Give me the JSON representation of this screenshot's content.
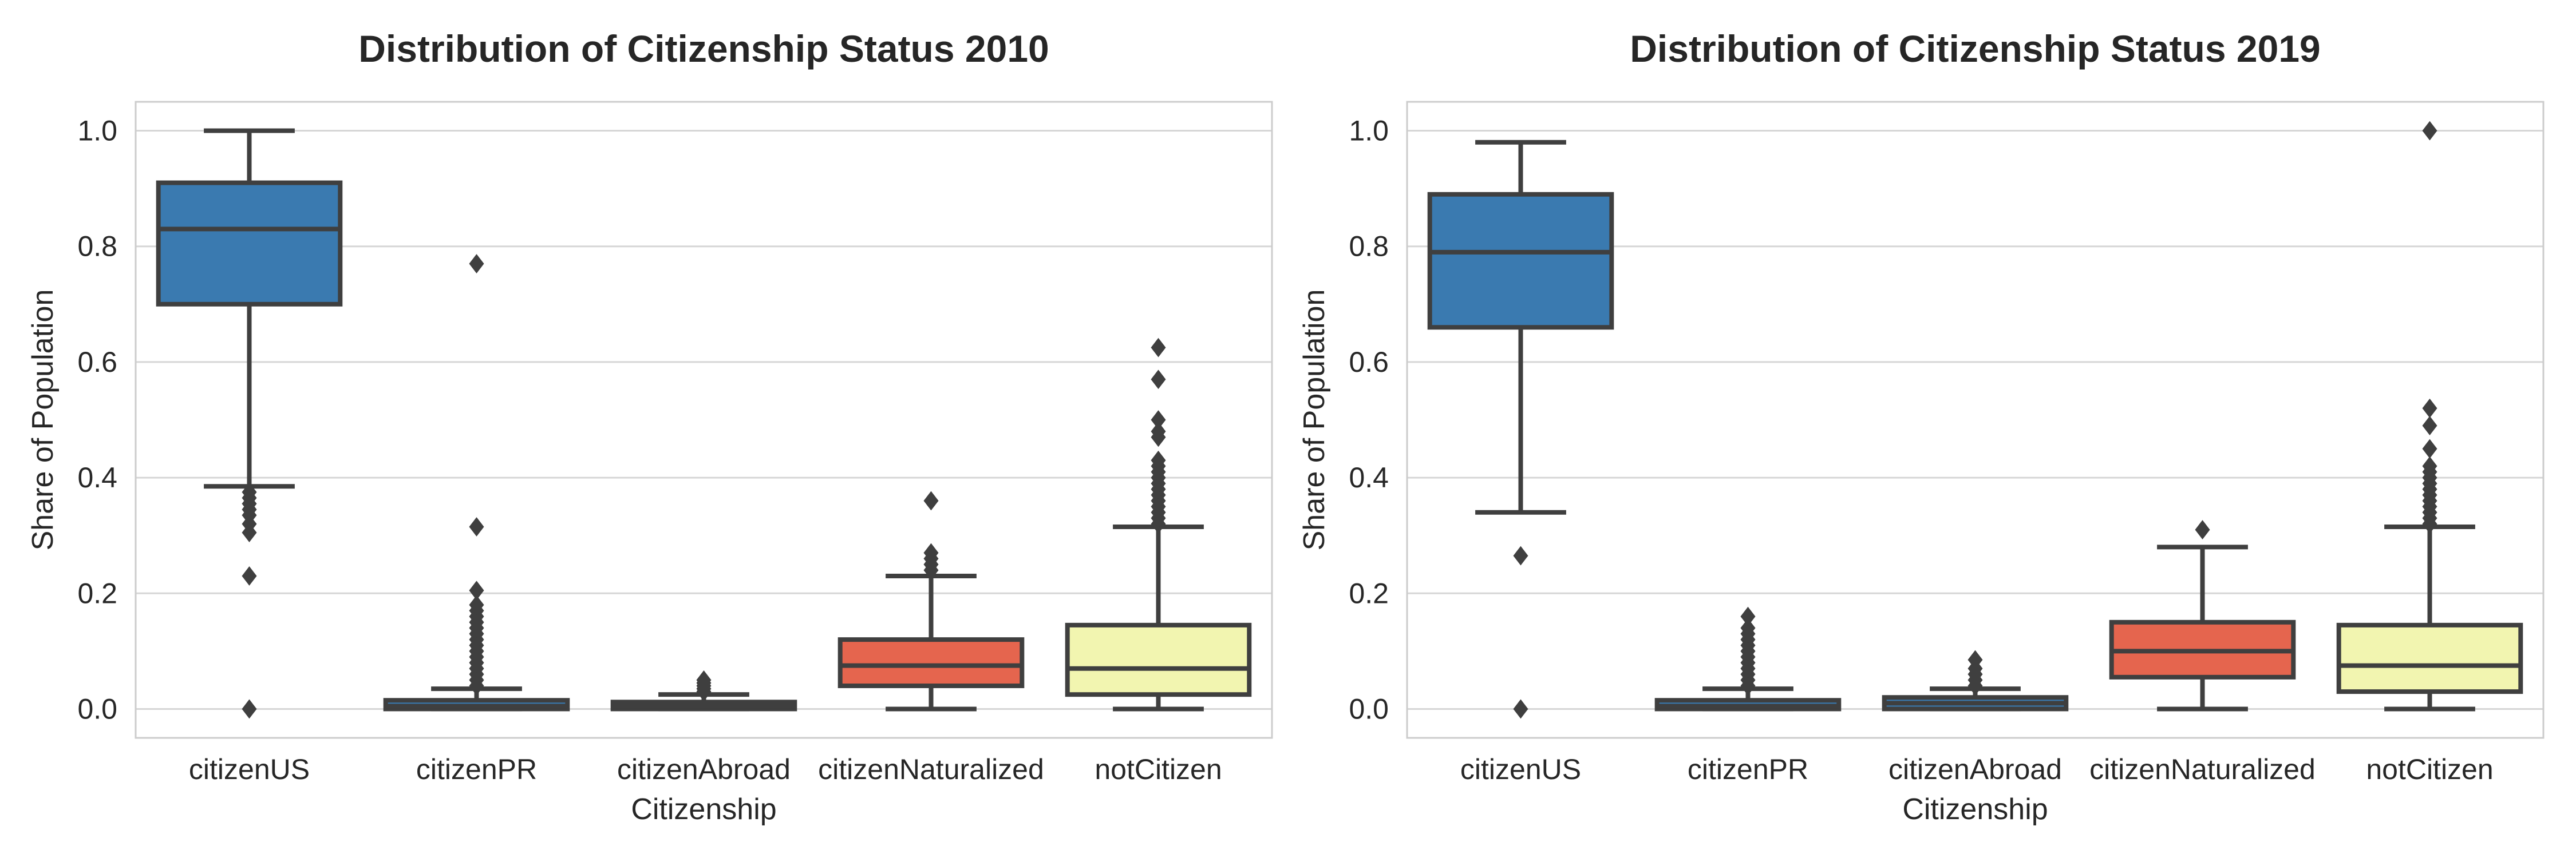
{
  "chart_data": [
    {
      "type": "box",
      "title": "Distribution of Citizenship Status 2010",
      "xlabel": "Citizenship",
      "ylabel": "Share of Population",
      "ylim": [
        -0.05,
        1.05
      ],
      "yticks": [
        "0.0",
        "0.2",
        "0.4",
        "0.6",
        "0.8",
        "1.0"
      ],
      "grid": true,
      "categories": [
        "citizenUS",
        "citizenPR",
        "citizenAbroad",
        "citizenNaturalized",
        "notCitizen"
      ],
      "colors": [
        "#3a7ab0",
        "#3a7ab0",
        "#3a7ab0",
        "#e5654e",
        "#f2f5b0"
      ],
      "boxes": [
        {
          "whisker_low": 0.385,
          "q1": 0.7,
          "median": 0.83,
          "q3": 0.91,
          "whisker_high": 1.0,
          "outliers": [
            0.375,
            0.365,
            0.355,
            0.345,
            0.335,
            0.32,
            0.305,
            0.23,
            0.0
          ]
        },
        {
          "whisker_low": 0.0,
          "q1": 0.0,
          "median": 0.005,
          "q3": 0.015,
          "whisker_high": 0.035,
          "outliers": [
            0.04,
            0.05,
            0.06,
            0.07,
            0.08,
            0.09,
            0.1,
            0.11,
            0.12,
            0.13,
            0.14,
            0.15,
            0.16,
            0.17,
            0.18,
            0.205,
            0.315,
            0.77
          ]
        },
        {
          "whisker_low": 0.0,
          "q1": 0.0,
          "median": 0.005,
          "q3": 0.012,
          "whisker_high": 0.025,
          "outliers": [
            0.03,
            0.035,
            0.04,
            0.045,
            0.05
          ]
        },
        {
          "whisker_low": 0.0,
          "q1": 0.04,
          "median": 0.075,
          "q3": 0.12,
          "whisker_high": 0.23,
          "outliers": [
            0.24,
            0.25,
            0.26,
            0.27,
            0.36
          ]
        },
        {
          "whisker_low": 0.0,
          "q1": 0.025,
          "median": 0.07,
          "q3": 0.145,
          "whisker_high": 0.315,
          "outliers": [
            0.32,
            0.33,
            0.34,
            0.35,
            0.36,
            0.37,
            0.38,
            0.39,
            0.4,
            0.41,
            0.42,
            0.43,
            0.47,
            0.48,
            0.5,
            0.57,
            0.625
          ]
        }
      ]
    },
    {
      "type": "box",
      "title": "Distribution of Citizenship Status 2019",
      "xlabel": "Citizenship",
      "ylabel": "Share of Population",
      "ylim": [
        -0.05,
        1.05
      ],
      "yticks": [
        "0.0",
        "0.2",
        "0.4",
        "0.6",
        "0.8",
        "1.0"
      ],
      "grid": true,
      "categories": [
        "citizenUS",
        "citizenPR",
        "citizenAbroad",
        "citizenNaturalized",
        "notCitizen"
      ],
      "colors": [
        "#3a7ab0",
        "#3a7ab0",
        "#3a7ab0",
        "#e5654e",
        "#f2f5b0"
      ],
      "boxes": [
        {
          "whisker_low": 0.34,
          "q1": 0.66,
          "median": 0.79,
          "q3": 0.89,
          "whisker_high": 0.98,
          "outliers": [
            0.265,
            0.0
          ]
        },
        {
          "whisker_low": 0.0,
          "q1": 0.0,
          "median": 0.005,
          "q3": 0.015,
          "whisker_high": 0.035,
          "outliers": [
            0.04,
            0.05,
            0.06,
            0.07,
            0.08,
            0.09,
            0.1,
            0.11,
            0.12,
            0.13,
            0.14,
            0.16
          ]
        },
        {
          "whisker_low": 0.0,
          "q1": 0.0,
          "median": 0.01,
          "q3": 0.02,
          "whisker_high": 0.035,
          "outliers": [
            0.04,
            0.05,
            0.06,
            0.07,
            0.085
          ]
        },
        {
          "whisker_low": 0.0,
          "q1": 0.055,
          "median": 0.1,
          "q3": 0.15,
          "whisker_high": 0.28,
          "outliers": [
            0.31
          ]
        },
        {
          "whisker_low": 0.0,
          "q1": 0.03,
          "median": 0.075,
          "q3": 0.145,
          "whisker_high": 0.315,
          "outliers": [
            0.32,
            0.33,
            0.34,
            0.35,
            0.36,
            0.37,
            0.38,
            0.39,
            0.4,
            0.41,
            0.42,
            0.45,
            0.49,
            0.52,
            1.0
          ]
        }
      ]
    }
  ]
}
